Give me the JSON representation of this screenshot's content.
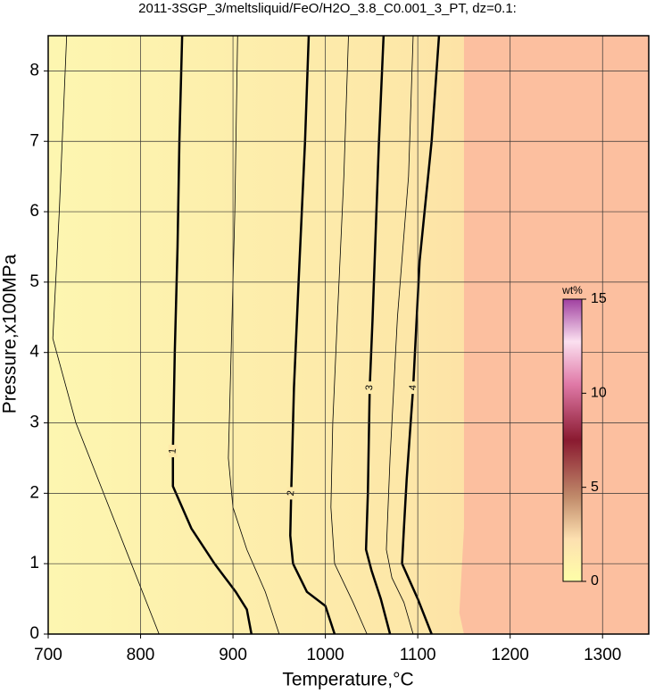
{
  "chart_data": {
    "type": "contour",
    "title": "2011-3SGP_3/meltsliquid/FeO/H2O_3.8_C0.001_3_PT, dz=0.1:",
    "x_label": "Temperature,°C",
    "y_label": "Pressure,x100MPa",
    "xlim": [
      700,
      1350
    ],
    "xticks": [
      700,
      800,
      900,
      1000,
      1100,
      1200,
      1300
    ],
    "ylim": [
      0,
      8.5
    ],
    "yticks": [
      0,
      1,
      2,
      3,
      4,
      5,
      6,
      7,
      8
    ],
    "grid": true,
    "region": {
      "color": "#fcbf9f",
      "x": [
        1150,
        1350,
        1350,
        1150,
        1145,
        1150
      ],
      "y": [
        8.5,
        8.5,
        0,
        0,
        0.3,
        1.5
      ]
    },
    "contours": [
      {
        "level": 0.5,
        "labeled": false,
        "x": [
          720,
          712,
          705,
          730,
          760,
          790,
          820
        ],
        "y": [
          8.5,
          6.0,
          4.2,
          3.0,
          2.0,
          1.0,
          0
        ]
      },
      {
        "level": 1,
        "labeled": true,
        "x": [
          845,
          842,
          840,
          837,
          835,
          835,
          855,
          880,
          903,
          915,
          920
        ],
        "y": [
          8.5,
          7.0,
          5.5,
          4.0,
          2.6,
          2.1,
          1.5,
          1.0,
          0.6,
          0.35,
          0
        ]
      },
      {
        "level": 1.5,
        "labeled": false,
        "x": [
          905,
          902,
          898,
          895,
          900,
          915,
          935,
          950
        ],
        "y": [
          8.5,
          6.0,
          4.0,
          2.5,
          1.8,
          1.2,
          0.6,
          0
        ]
      },
      {
        "level": 2,
        "labeled": true,
        "x": [
          982,
          978,
          971,
          966,
          963,
          962,
          965,
          980,
          1000,
          1010
        ],
        "y": [
          8.5,
          7.0,
          5.0,
          3.5,
          2.0,
          1.4,
          1.0,
          0.6,
          0.4,
          0
        ]
      },
      {
        "level": 2.5,
        "labeled": false,
        "x": [
          1025,
          1020,
          1013,
          1008,
          1006,
          1010,
          1030,
          1045
        ],
        "y": [
          8.5,
          6.5,
          4.5,
          3.0,
          1.8,
          1.0,
          0.45,
          0
        ]
      },
      {
        "level": 3,
        "labeled": true,
        "x": [
          1063,
          1058,
          1051,
          1048,
          1046,
          1044,
          1050,
          1060,
          1070
        ],
        "y": [
          8.5,
          7.0,
          4.45,
          3.5,
          2.0,
          1.2,
          0.9,
          0.5,
          0
        ]
      },
      {
        "level": 3.5,
        "labeled": false,
        "x": [
          1095,
          1090,
          1078,
          1070,
          1066,
          1072,
          1085,
          1095
        ],
        "y": [
          8.5,
          6.5,
          4.5,
          2.5,
          1.2,
          0.8,
          0.45,
          0
        ]
      },
      {
        "level": 4,
        "labeled": true,
        "x": [
          1123,
          1115,
          1102,
          1095,
          1088,
          1085,
          1083,
          1100,
          1115
        ],
        "y": [
          8.5,
          7.0,
          5.3,
          3.5,
          2.2,
          1.5,
          1.0,
          0.5,
          0
        ]
      }
    ],
    "colorbar": {
      "label": "wt%",
      "lim": [
        0,
        15
      ],
      "ticks": [
        0,
        5,
        10,
        15
      ]
    }
  }
}
